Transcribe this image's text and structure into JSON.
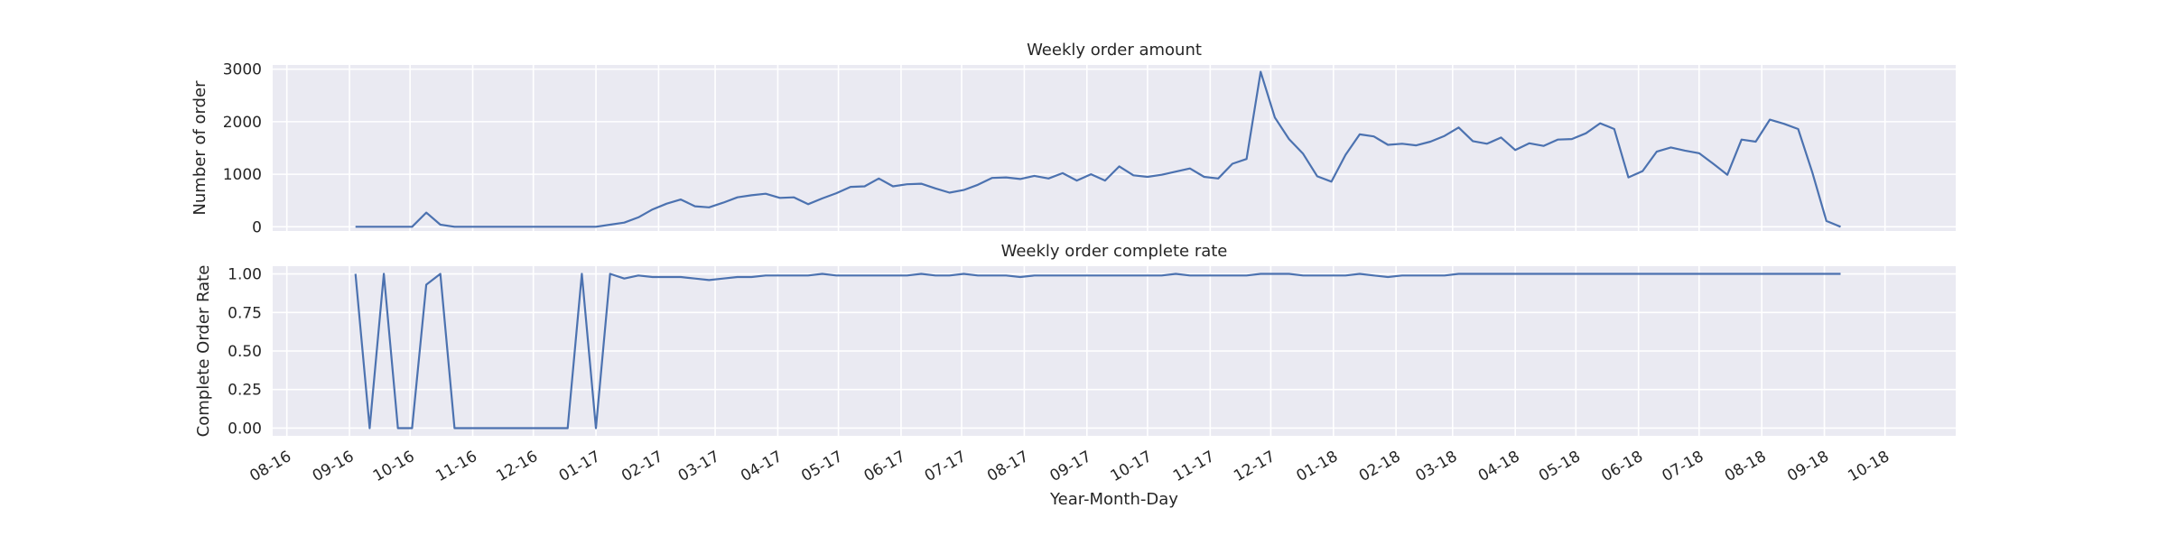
{
  "chart_data": [
    {
      "type": "line",
      "title": "Weekly order amount",
      "xlabel": "",
      "ylabel": "Number of order",
      "ylim": [
        -80,
        3080
      ],
      "yticks": [
        0,
        1000,
        2000,
        3000
      ],
      "grid": true,
      "color": "#4c72b0",
      "values": [
        0,
        0,
        0,
        0,
        0,
        270,
        40,
        0,
        0,
        0,
        0,
        0,
        0,
        0,
        0,
        0,
        0,
        0,
        40,
        80,
        180,
        330,
        440,
        520,
        390,
        370,
        460,
        560,
        600,
        630,
        550,
        560,
        430,
        540,
        640,
        760,
        770,
        920,
        770,
        810,
        820,
        730,
        650,
        700,
        800,
        930,
        940,
        910,
        970,
        920,
        1020,
        880,
        1000,
        880,
        1150,
        980,
        950,
        990,
        1050,
        1110,
        950,
        920,
        1200,
        1290,
        2950,
        2080,
        1670,
        1390,
        960,
        860,
        1370,
        1760,
        1720,
        1560,
        1580,
        1550,
        1620,
        1730,
        1890,
        1630,
        1580,
        1700,
        1460,
        1590,
        1540,
        1660,
        1670,
        1780,
        1970,
        1860,
        940,
        1060,
        1430,
        1510,
        1450,
        1400,
        1200,
        990,
        1660,
        1620,
        2040,
        1960,
        1860,
        1040,
        110,
        0
      ]
    },
    {
      "type": "line",
      "title": "Weekly order complete rate",
      "xlabel": "Year-Month-Day",
      "ylabel": "Complete Order Rate",
      "ylim": [
        -0.05,
        1.05
      ],
      "yticks": [
        "0.00",
        "0.25",
        "0.50",
        "0.75",
        "1.00"
      ],
      "grid": true,
      "color": "#4c72b0",
      "values": [
        1.0,
        0,
        1.0,
        0,
        0,
        0.93,
        1.0,
        0,
        0,
        0,
        0,
        0,
        0,
        0,
        0,
        0,
        1.0,
        0,
        1.0,
        0.97,
        0.99,
        0.98,
        0.98,
        0.98,
        0.97,
        0.96,
        0.97,
        0.98,
        0.98,
        0.99,
        0.99,
        0.99,
        0.99,
        1.0,
        0.99,
        0.99,
        0.99,
        0.99,
        0.99,
        0.99,
        1.0,
        0.99,
        0.99,
        1.0,
        0.99,
        0.99,
        0.99,
        0.98,
        0.99,
        0.99,
        0.99,
        0.99,
        0.99,
        0.99,
        0.99,
        0.99,
        0.99,
        0.99,
        1.0,
        0.99,
        0.99,
        0.99,
        0.99,
        0.99,
        1.0,
        1.0,
        1.0,
        0.99,
        0.99,
        0.99,
        0.99,
        1.0,
        0.99,
        0.98,
        0.99,
        0.99,
        0.99,
        0.99,
        1.0,
        1.0,
        1.0,
        1.0,
        1.0,
        1.0,
        1.0,
        1.0,
        1.0,
        1.0,
        1.0,
        1.0,
        1.0,
        1.0,
        1.0,
        1.0,
        1.0,
        1.0,
        1.0,
        1.0,
        1.0,
        1.0,
        1.0,
        1.0,
        1.0,
        1.0,
        1.0,
        1.0
      ]
    }
  ],
  "x_axis": {
    "start_date": "2016-09-04",
    "step_days": 7,
    "date_range": [
      "2016-07-25",
      "2018-11-05"
    ],
    "ticks": [
      {
        "label": "08-16",
        "date": "2016-08-01"
      },
      {
        "label": "09-16",
        "date": "2016-09-01"
      },
      {
        "label": "10-16",
        "date": "2016-10-01"
      },
      {
        "label": "11-16",
        "date": "2016-11-01"
      },
      {
        "label": "12-16",
        "date": "2016-12-01"
      },
      {
        "label": "01-17",
        "date": "2017-01-01"
      },
      {
        "label": "02-17",
        "date": "2017-02-01"
      },
      {
        "label": "03-17",
        "date": "2017-03-01"
      },
      {
        "label": "04-17",
        "date": "2017-04-01"
      },
      {
        "label": "05-17",
        "date": "2017-05-01"
      },
      {
        "label": "06-17",
        "date": "2017-06-01"
      },
      {
        "label": "07-17",
        "date": "2017-07-01"
      },
      {
        "label": "08-17",
        "date": "2017-08-01"
      },
      {
        "label": "09-17",
        "date": "2017-09-01"
      },
      {
        "label": "10-17",
        "date": "2017-10-01"
      },
      {
        "label": "11-17",
        "date": "2017-11-01"
      },
      {
        "label": "12-17",
        "date": "2017-12-01"
      },
      {
        "label": "01-18",
        "date": "2018-01-01"
      },
      {
        "label": "02-18",
        "date": "2018-02-01"
      },
      {
        "label": "03-18",
        "date": "2018-03-01"
      },
      {
        "label": "04-18",
        "date": "2018-04-01"
      },
      {
        "label": "05-18",
        "date": "2018-05-01"
      },
      {
        "label": "06-18",
        "date": "2018-06-01"
      },
      {
        "label": "07-18",
        "date": "2018-07-01"
      },
      {
        "label": "08-18",
        "date": "2018-08-01"
      },
      {
        "label": "09-18",
        "date": "2018-09-01"
      },
      {
        "label": "10-18",
        "date": "2018-10-01"
      }
    ]
  },
  "style": {
    "background": "#eaeaf2",
    "grid_color": "#ffffff",
    "line_color": "#4c72b0"
  }
}
